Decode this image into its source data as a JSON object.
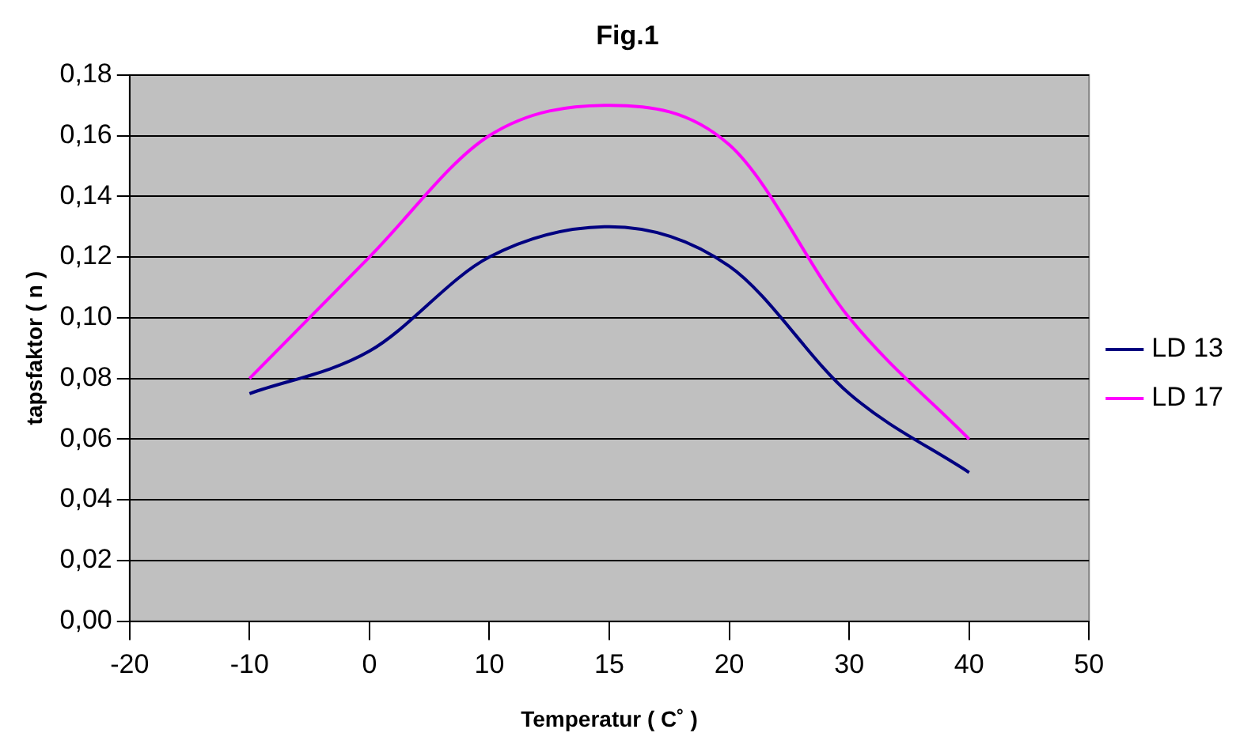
{
  "chart_data": {
    "type": "line",
    "title": "Fig.1",
    "xlabel": "Temperatur ( C˚ )",
    "ylabel": "tapsfaktor ( n )",
    "categories": [
      "-20",
      "-10",
      "0",
      "10",
      "15",
      "20",
      "30",
      "40",
      "50"
    ],
    "series": [
      {
        "name": "LD 13",
        "color": "#000080",
        "values": [
          null,
          0.075,
          0.089,
          0.12,
          0.13,
          0.117,
          0.075,
          0.049,
          null
        ]
      },
      {
        "name": "LD 17",
        "color": "#ff00ff",
        "values": [
          null,
          0.08,
          0.12,
          0.16,
          0.17,
          0.157,
          0.1,
          0.06,
          null
        ]
      }
    ],
    "ylim": [
      0,
      0.18
    ],
    "yticks": [
      {
        "value": 0,
        "label": "0,00"
      },
      {
        "value": 0.02,
        "label": "0,02"
      },
      {
        "value": 0.04,
        "label": "0,04"
      },
      {
        "value": 0.06,
        "label": "0,06"
      },
      {
        "value": 0.08,
        "label": "0,08"
      },
      {
        "value": 0.1,
        "label": "0,10"
      },
      {
        "value": 0.12,
        "label": "0,12"
      },
      {
        "value": 0.14,
        "label": "0,14"
      },
      {
        "value": 0.16,
        "label": "0,16"
      },
      {
        "value": 0.18,
        "label": "0,18"
      }
    ],
    "grid": "y",
    "legend": "right",
    "marker": "none",
    "line_style": "solid"
  }
}
